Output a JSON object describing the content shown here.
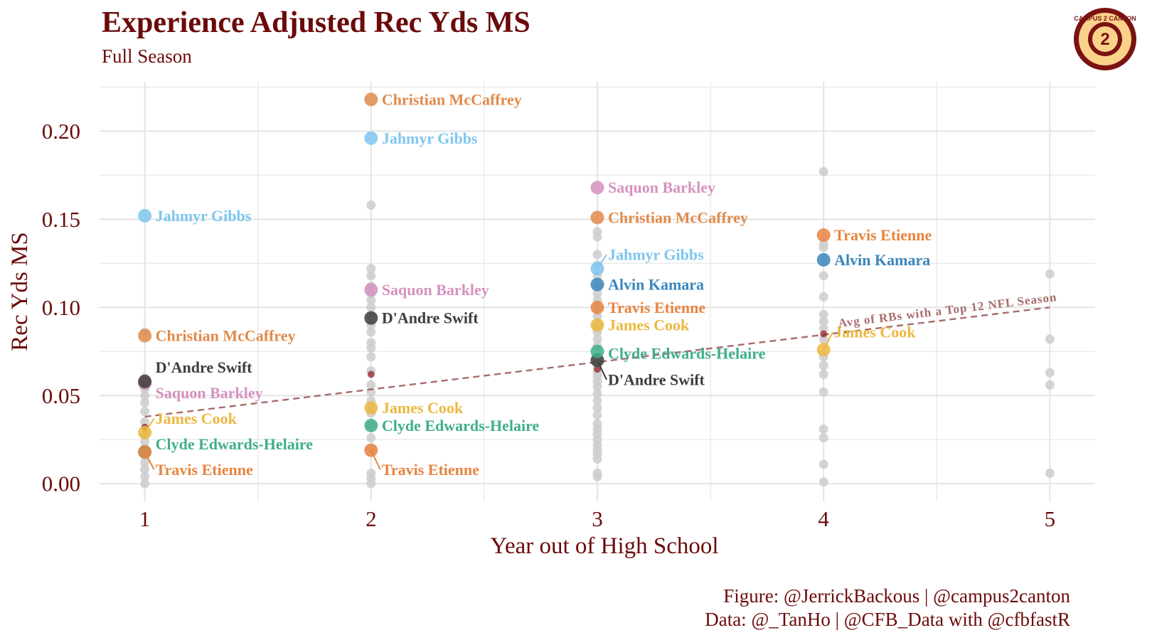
{
  "header": {
    "title": "Experience Adjusted Rec Yds MS",
    "subtitle": "Full Season"
  },
  "footer": {
    "credit": "Figure: @JerrickBackous | @campus2canton",
    "source": "Data: @_TanHo | @CFB_Data with @cfbfastR"
  },
  "logo": {
    "icon": "campus2canton-logo",
    "text": "CAMPUS 2 CANTON"
  },
  "colors": {
    "title": "#6b0a0a",
    "grid": "#e6e6e6",
    "background_dot": "#cccccc",
    "trend": "#a86b6b",
    "avg_marker": "#8b1a1a",
    "logo_ring": "#7a1212",
    "logo_fill": "#fbd28a"
  },
  "chart_data": {
    "type": "scatter",
    "title": "Experience Adjusted Rec Yds MS",
    "subtitle": "Full Season",
    "xlabel": "Year out of High School",
    "ylabel": "Rec Yds MS",
    "xlim": [
      0.8,
      5.2
    ],
    "ylim": [
      -0.01,
      0.228
    ],
    "xticks": [
      "1",
      "2",
      "3",
      "4",
      "5"
    ],
    "yticks": [
      "0.00",
      "0.05",
      "0.10",
      "0.15",
      "0.20"
    ],
    "grid": true,
    "trendline": {
      "label": "Avg of RBs with a Top 12 NFL Season",
      "x": [
        1,
        5
      ],
      "y": [
        0.038,
        0.1
      ]
    },
    "average_markers": [
      {
        "x": 1,
        "y": 0.032
      },
      {
        "x": 2,
        "y": 0.062
      },
      {
        "x": 3,
        "y": 0.065
      },
      {
        "x": 4,
        "y": 0.085
      }
    ],
    "background_points": [
      {
        "x": 1,
        "y": [
          0.0,
          0.004,
          0.008,
          0.012,
          0.016,
          0.02,
          0.024,
          0.028,
          0.035,
          0.041,
          0.046,
          0.05,
          0.054,
          0.058,
          0.06,
          0.086
        ]
      },
      {
        "x": 2,
        "y": [
          0.0,
          0.003,
          0.006,
          0.02,
          0.026,
          0.033,
          0.04,
          0.044,
          0.047,
          0.052,
          0.056,
          0.064,
          0.072,
          0.077,
          0.08,
          0.086,
          0.09,
          0.095,
          0.1,
          0.104,
          0.108,
          0.112,
          0.118,
          0.122,
          0.158
        ]
      },
      {
        "x": 3,
        "y": [
          0.004,
          0.006,
          0.014,
          0.017,
          0.019,
          0.022,
          0.025,
          0.028,
          0.031,
          0.034,
          0.039,
          0.043,
          0.047,
          0.051,
          0.055,
          0.058,
          0.061,
          0.063,
          0.066,
          0.069,
          0.072,
          0.078,
          0.082,
          0.086,
          0.09,
          0.095,
          0.1,
          0.104,
          0.108,
          0.112,
          0.118,
          0.124,
          0.13,
          0.14,
          0.143
        ]
      },
      {
        "x": 4,
        "y": [
          0.001,
          0.011,
          0.026,
          0.031,
          0.052,
          0.062,
          0.067,
          0.072,
          0.082,
          0.088,
          0.092,
          0.096,
          0.106,
          0.118,
          0.134,
          0.136,
          0.177
        ]
      },
      {
        "x": 5,
        "y": [
          0.006,
          0.056,
          0.063,
          0.082,
          0.119
        ]
      }
    ],
    "series": [
      {
        "name": "Christian McCaffrey",
        "color": "#e08a4a",
        "points": [
          {
            "x": 1,
            "y": 0.084,
            "label": "Christian McCaffrey"
          },
          {
            "x": 2,
            "y": 0.218,
            "label": "Christian McCaffrey"
          },
          {
            "x": 3,
            "y": 0.151,
            "label": "Christian McCaffrey"
          }
        ]
      },
      {
        "name": "Jahmyr Gibbs",
        "color": "#7ec6ee",
        "points": [
          {
            "x": 1,
            "y": 0.152,
            "label": "Jahmyr Gibbs"
          },
          {
            "x": 2,
            "y": 0.196,
            "label": "Jahmyr Gibbs"
          },
          {
            "x": 3,
            "y": 0.122,
            "label": "Jahmyr Gibbs"
          }
        ]
      },
      {
        "name": "Saquon Barkley",
        "color": "#d592bf",
        "points": [
          {
            "x": 1,
            "y": 0.057,
            "label": "Saquon Barkley"
          },
          {
            "x": 2,
            "y": 0.11,
            "label": "Saquon Barkley"
          },
          {
            "x": 3,
            "y": 0.168,
            "label": "Saquon Barkley"
          }
        ]
      },
      {
        "name": "D'Andre Swift",
        "color": "#3d3d3d",
        "points": [
          {
            "x": 1,
            "y": 0.058,
            "label": "D'Andre Swift"
          },
          {
            "x": 2,
            "y": 0.094,
            "label": "D'Andre Swift"
          },
          {
            "x": 3,
            "y": 0.07,
            "label": "D'Andre Swift"
          }
        ]
      },
      {
        "name": "James Cook",
        "color": "#ebb83f",
        "points": [
          {
            "x": 1,
            "y": 0.029,
            "label": "James Cook"
          },
          {
            "x": 2,
            "y": 0.043,
            "label": "James Cook"
          },
          {
            "x": 3,
            "y": 0.09,
            "label": "James Cook"
          },
          {
            "x": 4,
            "y": 0.076,
            "label": "James Cook"
          }
        ]
      },
      {
        "name": "Clyde Edwards-Helaire",
        "color": "#3fae8c",
        "points": [
          {
            "x": 1,
            "y": 0.018,
            "label": "Clyde Edwards-Helaire"
          },
          {
            "x": 2,
            "y": 0.033,
            "label": "Clyde Edwards-Helaire"
          },
          {
            "x": 3,
            "y": 0.075,
            "label": "Clyde Edwards-Helaire"
          }
        ]
      },
      {
        "name": "Travis Etienne",
        "color": "#e8843f",
        "points": [
          {
            "x": 1,
            "y": 0.018,
            "label": "Travis Etienne"
          },
          {
            "x": 2,
            "y": 0.019,
            "label": "Travis Etienne"
          },
          {
            "x": 3,
            "y": 0.1,
            "label": "Travis Etienne"
          },
          {
            "x": 4,
            "y": 0.141,
            "label": "Travis Etienne"
          }
        ]
      },
      {
        "name": "Alvin Kamara",
        "color": "#3a86bd",
        "points": [
          {
            "x": 3,
            "y": 0.113,
            "label": "Alvin Kamara"
          },
          {
            "x": 4,
            "y": 0.127,
            "label": "Alvin Kamara"
          }
        ]
      }
    ]
  }
}
